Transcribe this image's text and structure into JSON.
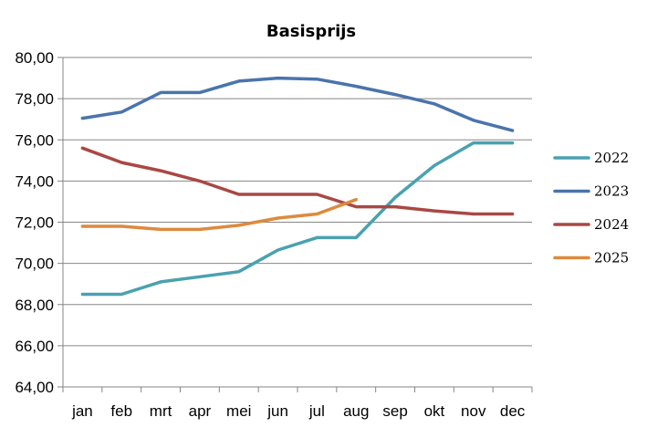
{
  "chart_data": {
    "type": "line",
    "title": "Basisprijs",
    "xlabel": "",
    "ylabel": "",
    "categories": [
      "jan",
      "feb",
      "mrt",
      "apr",
      "mei",
      "jun",
      "jul",
      "aug",
      "sep",
      "okt",
      "nov",
      "dec"
    ],
    "ylim": [
      64,
      80
    ],
    "yticks": [
      "80,00",
      "78,00",
      "76,00",
      "74,00",
      "72,00",
      "70,00",
      "68,00",
      "66,00",
      "64,00"
    ],
    "grid": true,
    "legend_position": "right",
    "series": [
      {
        "name": "2022",
        "color": "#4aa1b0",
        "values": [
          68.5,
          68.5,
          69.1,
          69.35,
          69.6,
          70.65,
          71.25,
          71.25,
          73.2,
          74.75,
          75.85,
          75.85
        ]
      },
      {
        "name": "2023",
        "color": "#4a74ac",
        "values": [
          77.05,
          77.35,
          78.3,
          78.3,
          78.85,
          79.0,
          78.95,
          78.6,
          78.2,
          77.75,
          76.95,
          76.45
        ]
      },
      {
        "name": "2024",
        "color": "#a94844",
        "values": [
          75.6,
          74.9,
          74.5,
          74.0,
          73.35,
          73.35,
          73.35,
          72.75,
          72.75,
          72.55,
          72.4,
          72.4
        ]
      },
      {
        "name": "2025",
        "color": "#dd8a3d",
        "values": [
          71.8,
          71.8,
          71.65,
          71.65,
          71.85,
          72.2,
          72.4,
          73.1,
          null,
          null,
          null,
          null
        ]
      }
    ]
  }
}
